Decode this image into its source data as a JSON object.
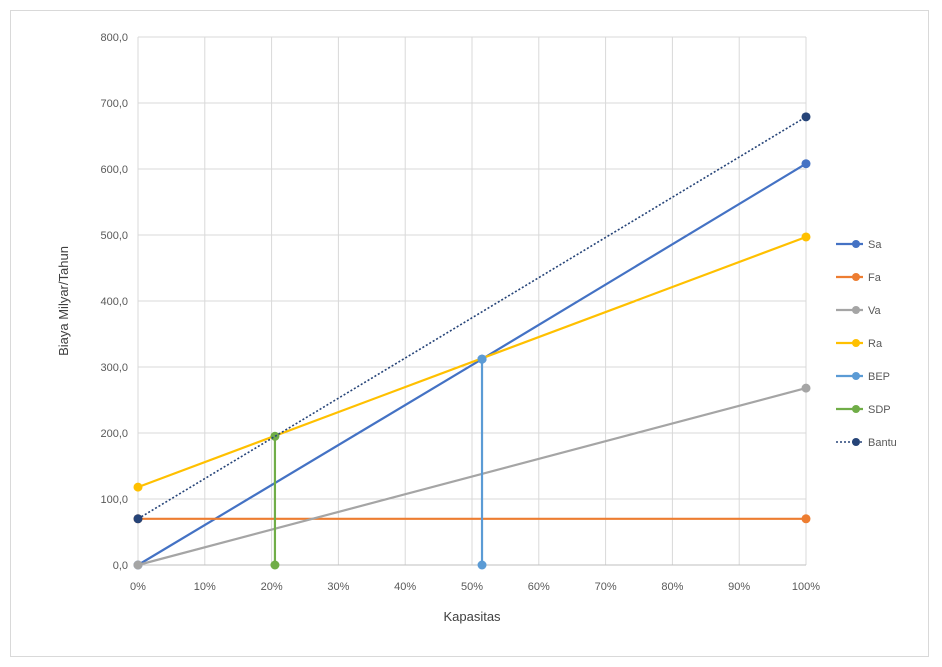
{
  "chart_data": {
    "type": "line",
    "title": "",
    "xlabel": "Kapasitas",
    "ylabel": "Biaya Milyar/Tahun",
    "x_unit": "percent",
    "xlim": [
      0,
      100
    ],
    "ylim": [
      0,
      800
    ],
    "x_ticks": [
      "0%",
      "10%",
      "20%",
      "30%",
      "40%",
      "50%",
      "60%",
      "70%",
      "80%",
      "90%",
      "100%"
    ],
    "y_ticks": [
      "0,0",
      "100,0",
      "200,0",
      "300,0",
      "400,0",
      "500,0",
      "600,0",
      "700,0",
      "800,0"
    ],
    "grid": true,
    "legend_position": "right",
    "series": [
      {
        "name": "Sa",
        "color": "#4472C4",
        "style": "solid",
        "points": [
          [
            0,
            0
          ],
          [
            51.5,
            312
          ],
          [
            100,
            608
          ]
        ]
      },
      {
        "name": "Fa",
        "color": "#ED7D31",
        "style": "solid",
        "points": [
          [
            0,
            70
          ],
          [
            100,
            70
          ]
        ]
      },
      {
        "name": "Va",
        "color": "#A5A5A5",
        "style": "solid",
        "points": [
          [
            0,
            0
          ],
          [
            100,
            268
          ]
        ]
      },
      {
        "name": "Ra",
        "color": "#FFC000",
        "style": "solid",
        "points": [
          [
            0,
            118
          ],
          [
            100,
            497
          ]
        ]
      },
      {
        "name": "BEP",
        "color": "#5B9BD5",
        "style": "solid",
        "points": [
          [
            51.5,
            0
          ],
          [
            51.5,
            312
          ]
        ]
      },
      {
        "name": "SDP",
        "color": "#70AD47",
        "style": "solid",
        "points": [
          [
            20.5,
            0
          ],
          [
            20.5,
            195
          ]
        ]
      },
      {
        "name": "Bantu",
        "color": "#264478",
        "style": "dotted",
        "points": [
          [
            0,
            70
          ],
          [
            100,
            679
          ]
        ]
      }
    ]
  }
}
